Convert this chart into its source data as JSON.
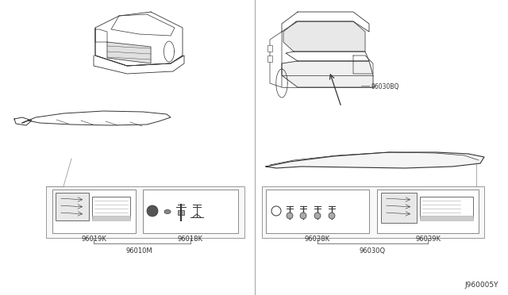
{
  "bg": "#ffffff",
  "lc": "#333333",
  "lc_light": "#777777",
  "box_bg": "#f5f5f5",
  "text_color": "#333333",
  "left_labels": [
    "96019K",
    "96018K",
    "96010M"
  ],
  "right_labels": [
    "96030BQ",
    "96038K",
    "96039K",
    "96030Q"
  ],
  "watermark": "J960005Y",
  "divider_color": "#aaaaaa"
}
